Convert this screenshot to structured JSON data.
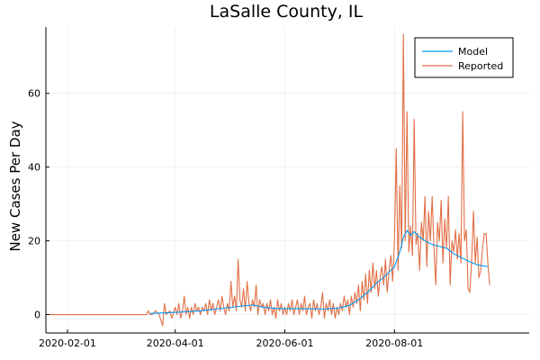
{
  "chart_data": {
    "type": "line",
    "title": "LaSalle County, IL",
    "xlabel": "",
    "ylabel": "New Cases Per Day",
    "xlim": [
      "2020-01-20",
      "2020-10-15"
    ],
    "ylim": [
      -5,
      78
    ],
    "x_ticks": [
      "2020-02-01",
      "2020-04-01",
      "2020-06-01",
      "2020-08-01"
    ],
    "y_ticks": [
      0,
      20,
      40,
      60
    ],
    "grid": true,
    "legend_position": "top-right",
    "series": [
      {
        "name": "Model",
        "color": "#009AFA",
        "points": [
          [
            "2020-03-18",
            0.3
          ],
          [
            "2020-04-01",
            0.6
          ],
          [
            "2020-04-15",
            1.0
          ],
          [
            "2020-04-29",
            1.8
          ],
          [
            "2020-05-06",
            2.2
          ],
          [
            "2020-05-14",
            2.6
          ],
          [
            "2020-05-20",
            2.0
          ],
          [
            "2020-05-28",
            1.6
          ],
          [
            "2020-06-10",
            1.6
          ],
          [
            "2020-06-24",
            1.5
          ],
          [
            "2020-07-01",
            1.8
          ],
          [
            "2020-07-07",
            2.5
          ],
          [
            "2020-07-12",
            4.0
          ],
          [
            "2020-07-17",
            6.0
          ],
          [
            "2020-07-22",
            8.5
          ],
          [
            "2020-07-27",
            10.5
          ],
          [
            "2020-08-01",
            13.0
          ],
          [
            "2020-08-04",
            17.0
          ],
          [
            "2020-08-06",
            21.0
          ],
          [
            "2020-08-08",
            22.8
          ],
          [
            "2020-08-10",
            21.5
          ],
          [
            "2020-08-12",
            22.5
          ],
          [
            "2020-08-15",
            21.0
          ],
          [
            "2020-08-18",
            20.0
          ],
          [
            "2020-08-22",
            19.0
          ],
          [
            "2020-08-26",
            18.5
          ],
          [
            "2020-08-30",
            18.0
          ],
          [
            "2020-09-03",
            16.5
          ],
          [
            "2020-09-07",
            15.5
          ],
          [
            "2020-09-11",
            14.5
          ],
          [
            "2020-09-16",
            13.5
          ],
          [
            "2020-09-22",
            13.0
          ]
        ]
      },
      {
        "name": "Reported",
        "color": "#E26F46",
        "points": [
          [
            "2020-01-22",
            0
          ],
          [
            "2020-03-16",
            0
          ],
          [
            "2020-03-17",
            1
          ],
          [
            "2020-03-18",
            0
          ],
          [
            "2020-03-19",
            0
          ],
          [
            "2020-03-21",
            1
          ],
          [
            "2020-03-23",
            0
          ],
          [
            "2020-03-25",
            -3
          ],
          [
            "2020-03-26",
            3
          ],
          [
            "2020-03-27",
            0
          ],
          [
            "2020-03-29",
            1
          ],
          [
            "2020-03-30",
            -1
          ],
          [
            "2020-04-01",
            2
          ],
          [
            "2020-04-02",
            0
          ],
          [
            "2020-04-03",
            3
          ],
          [
            "2020-04-04",
            -1
          ],
          [
            "2020-04-05",
            1
          ],
          [
            "2020-04-06",
            5
          ],
          [
            "2020-04-07",
            0
          ],
          [
            "2020-04-08",
            2
          ],
          [
            "2020-04-09",
            -1
          ],
          [
            "2020-04-10",
            2
          ],
          [
            "2020-04-11",
            0
          ],
          [
            "2020-04-12",
            3
          ],
          [
            "2020-04-13",
            1
          ],
          [
            "2020-04-14",
            2
          ],
          [
            "2020-04-15",
            0
          ],
          [
            "2020-04-16",
            2
          ],
          [
            "2020-04-17",
            1
          ],
          [
            "2020-04-18",
            3
          ],
          [
            "2020-04-19",
            0
          ],
          [
            "2020-04-20",
            4
          ],
          [
            "2020-04-21",
            1
          ],
          [
            "2020-04-22",
            3
          ],
          [
            "2020-04-23",
            0
          ],
          [
            "2020-04-24",
            2
          ],
          [
            "2020-04-25",
            4
          ],
          [
            "2020-04-26",
            1
          ],
          [
            "2020-04-27",
            5
          ],
          [
            "2020-04-28",
            2
          ],
          [
            "2020-04-29",
            0
          ],
          [
            "2020-04-30",
            3
          ],
          [
            "2020-05-01",
            1
          ],
          [
            "2020-05-02",
            9
          ],
          [
            "2020-05-03",
            2
          ],
          [
            "2020-05-04",
            5
          ],
          [
            "2020-05-05",
            1
          ],
          [
            "2020-05-06",
            15
          ],
          [
            "2020-05-07",
            4
          ],
          [
            "2020-05-08",
            2
          ],
          [
            "2020-05-09",
            7
          ],
          [
            "2020-05-10",
            1
          ],
          [
            "2020-05-11",
            9
          ],
          [
            "2020-05-12",
            3
          ],
          [
            "2020-05-13",
            1
          ],
          [
            "2020-05-14",
            4
          ],
          [
            "2020-05-15",
            2
          ],
          [
            "2020-05-16",
            8
          ],
          [
            "2020-05-17",
            0
          ],
          [
            "2020-05-18",
            4
          ],
          [
            "2020-05-19",
            2
          ],
          [
            "2020-05-20",
            3
          ],
          [
            "2020-05-21",
            0
          ],
          [
            "2020-05-22",
            3
          ],
          [
            "2020-05-23",
            1
          ],
          [
            "2020-05-24",
            4
          ],
          [
            "2020-05-25",
            0
          ],
          [
            "2020-05-26",
            2
          ],
          [
            "2020-05-27",
            -1
          ],
          [
            "2020-05-28",
            4
          ],
          [
            "2020-05-29",
            1
          ],
          [
            "2020-05-30",
            3
          ],
          [
            "2020-05-31",
            0
          ],
          [
            "2020-06-01",
            2
          ],
          [
            "2020-06-02",
            0
          ],
          [
            "2020-06-03",
            3
          ],
          [
            "2020-06-04",
            1
          ],
          [
            "2020-06-05",
            4
          ],
          [
            "2020-06-06",
            0
          ],
          [
            "2020-06-07",
            2
          ],
          [
            "2020-06-08",
            4
          ],
          [
            "2020-06-09",
            0
          ],
          [
            "2020-06-10",
            3
          ],
          [
            "2020-06-11",
            1
          ],
          [
            "2020-06-12",
            5
          ],
          [
            "2020-06-13",
            0
          ],
          [
            "2020-06-14",
            2
          ],
          [
            "2020-06-15",
            3
          ],
          [
            "2020-06-16",
            -1
          ],
          [
            "2020-06-17",
            4
          ],
          [
            "2020-06-18",
            1
          ],
          [
            "2020-06-19",
            3
          ],
          [
            "2020-06-20",
            0
          ],
          [
            "2020-06-21",
            2
          ],
          [
            "2020-06-22",
            6
          ],
          [
            "2020-06-23",
            -1
          ],
          [
            "2020-06-24",
            3
          ],
          [
            "2020-06-25",
            1
          ],
          [
            "2020-06-26",
            4
          ],
          [
            "2020-06-27",
            0
          ],
          [
            "2020-06-28",
            3
          ],
          [
            "2020-06-29",
            -1
          ],
          [
            "2020-06-30",
            2
          ],
          [
            "2020-07-01",
            0
          ],
          [
            "2020-07-02",
            3
          ],
          [
            "2020-07-03",
            1
          ],
          [
            "2020-07-04",
            5
          ],
          [
            "2020-07-05",
            2
          ],
          [
            "2020-07-06",
            4
          ],
          [
            "2020-07-07",
            0
          ],
          [
            "2020-07-08",
            5
          ],
          [
            "2020-07-09",
            2
          ],
          [
            "2020-07-10",
            6
          ],
          [
            "2020-07-11",
            3
          ],
          [
            "2020-07-12",
            8
          ],
          [
            "2020-07-13",
            1
          ],
          [
            "2020-07-14",
            9
          ],
          [
            "2020-07-15",
            4
          ],
          [
            "2020-07-16",
            11
          ],
          [
            "2020-07-17",
            3
          ],
          [
            "2020-07-18",
            12
          ],
          [
            "2020-07-19",
            6
          ],
          [
            "2020-07-20",
            14
          ],
          [
            "2020-07-21",
            7
          ],
          [
            "2020-07-22",
            12
          ],
          [
            "2020-07-23",
            5
          ],
          [
            "2020-07-24",
            10
          ],
          [
            "2020-07-25",
            13
          ],
          [
            "2020-07-26",
            8
          ],
          [
            "2020-07-27",
            15
          ],
          [
            "2020-07-28",
            6
          ],
          [
            "2020-07-29",
            12
          ],
          [
            "2020-07-30",
            16
          ],
          [
            "2020-07-31",
            9
          ],
          [
            "2020-08-01",
            20
          ],
          [
            "2020-08-02",
            45
          ],
          [
            "2020-08-03",
            12
          ],
          [
            "2020-08-04",
            35
          ],
          [
            "2020-08-05",
            18
          ],
          [
            "2020-08-06",
            76
          ],
          [
            "2020-08-07",
            20
          ],
          [
            "2020-08-08",
            55
          ],
          [
            "2020-08-09",
            17
          ],
          [
            "2020-08-10",
            24
          ],
          [
            "2020-08-11",
            16
          ],
          [
            "2020-08-12",
            53
          ],
          [
            "2020-08-13",
            19
          ],
          [
            "2020-08-14",
            22
          ],
          [
            "2020-08-15",
            12
          ],
          [
            "2020-08-16",
            25
          ],
          [
            "2020-08-17",
            20
          ],
          [
            "2020-08-18",
            32
          ],
          [
            "2020-08-19",
            13
          ],
          [
            "2020-08-20",
            28
          ],
          [
            "2020-08-21",
            20
          ],
          [
            "2020-08-22",
            32
          ],
          [
            "2020-08-23",
            18
          ],
          [
            "2020-08-24",
            8
          ],
          [
            "2020-08-25",
            25
          ],
          [
            "2020-08-26",
            20
          ],
          [
            "2020-08-27",
            31
          ],
          [
            "2020-08-28",
            14
          ],
          [
            "2020-08-29",
            26
          ],
          [
            "2020-08-30",
            18
          ],
          [
            "2020-08-31",
            32
          ],
          [
            "2020-09-01",
            8
          ],
          [
            "2020-09-02",
            20
          ],
          [
            "2020-09-03",
            17
          ],
          [
            "2020-09-04",
            23
          ],
          [
            "2020-09-05",
            15
          ],
          [
            "2020-09-06",
            22
          ],
          [
            "2020-09-07",
            14
          ],
          [
            "2020-09-08",
            55
          ],
          [
            "2020-09-09",
            20
          ],
          [
            "2020-09-10",
            23
          ],
          [
            "2020-09-11",
            7
          ],
          [
            "2020-09-12",
            6
          ],
          [
            "2020-09-13",
            15
          ],
          [
            "2020-09-14",
            28
          ],
          [
            "2020-09-15",
            14
          ],
          [
            "2020-09-16",
            21
          ],
          [
            "2020-09-17",
            10
          ],
          [
            "2020-09-18",
            12
          ],
          [
            "2020-09-19",
            18
          ],
          [
            "2020-09-20",
            22
          ],
          [
            "2020-09-21",
            22
          ],
          [
            "2020-09-22",
            14
          ],
          [
            "2020-09-23",
            8
          ]
        ]
      }
    ]
  }
}
